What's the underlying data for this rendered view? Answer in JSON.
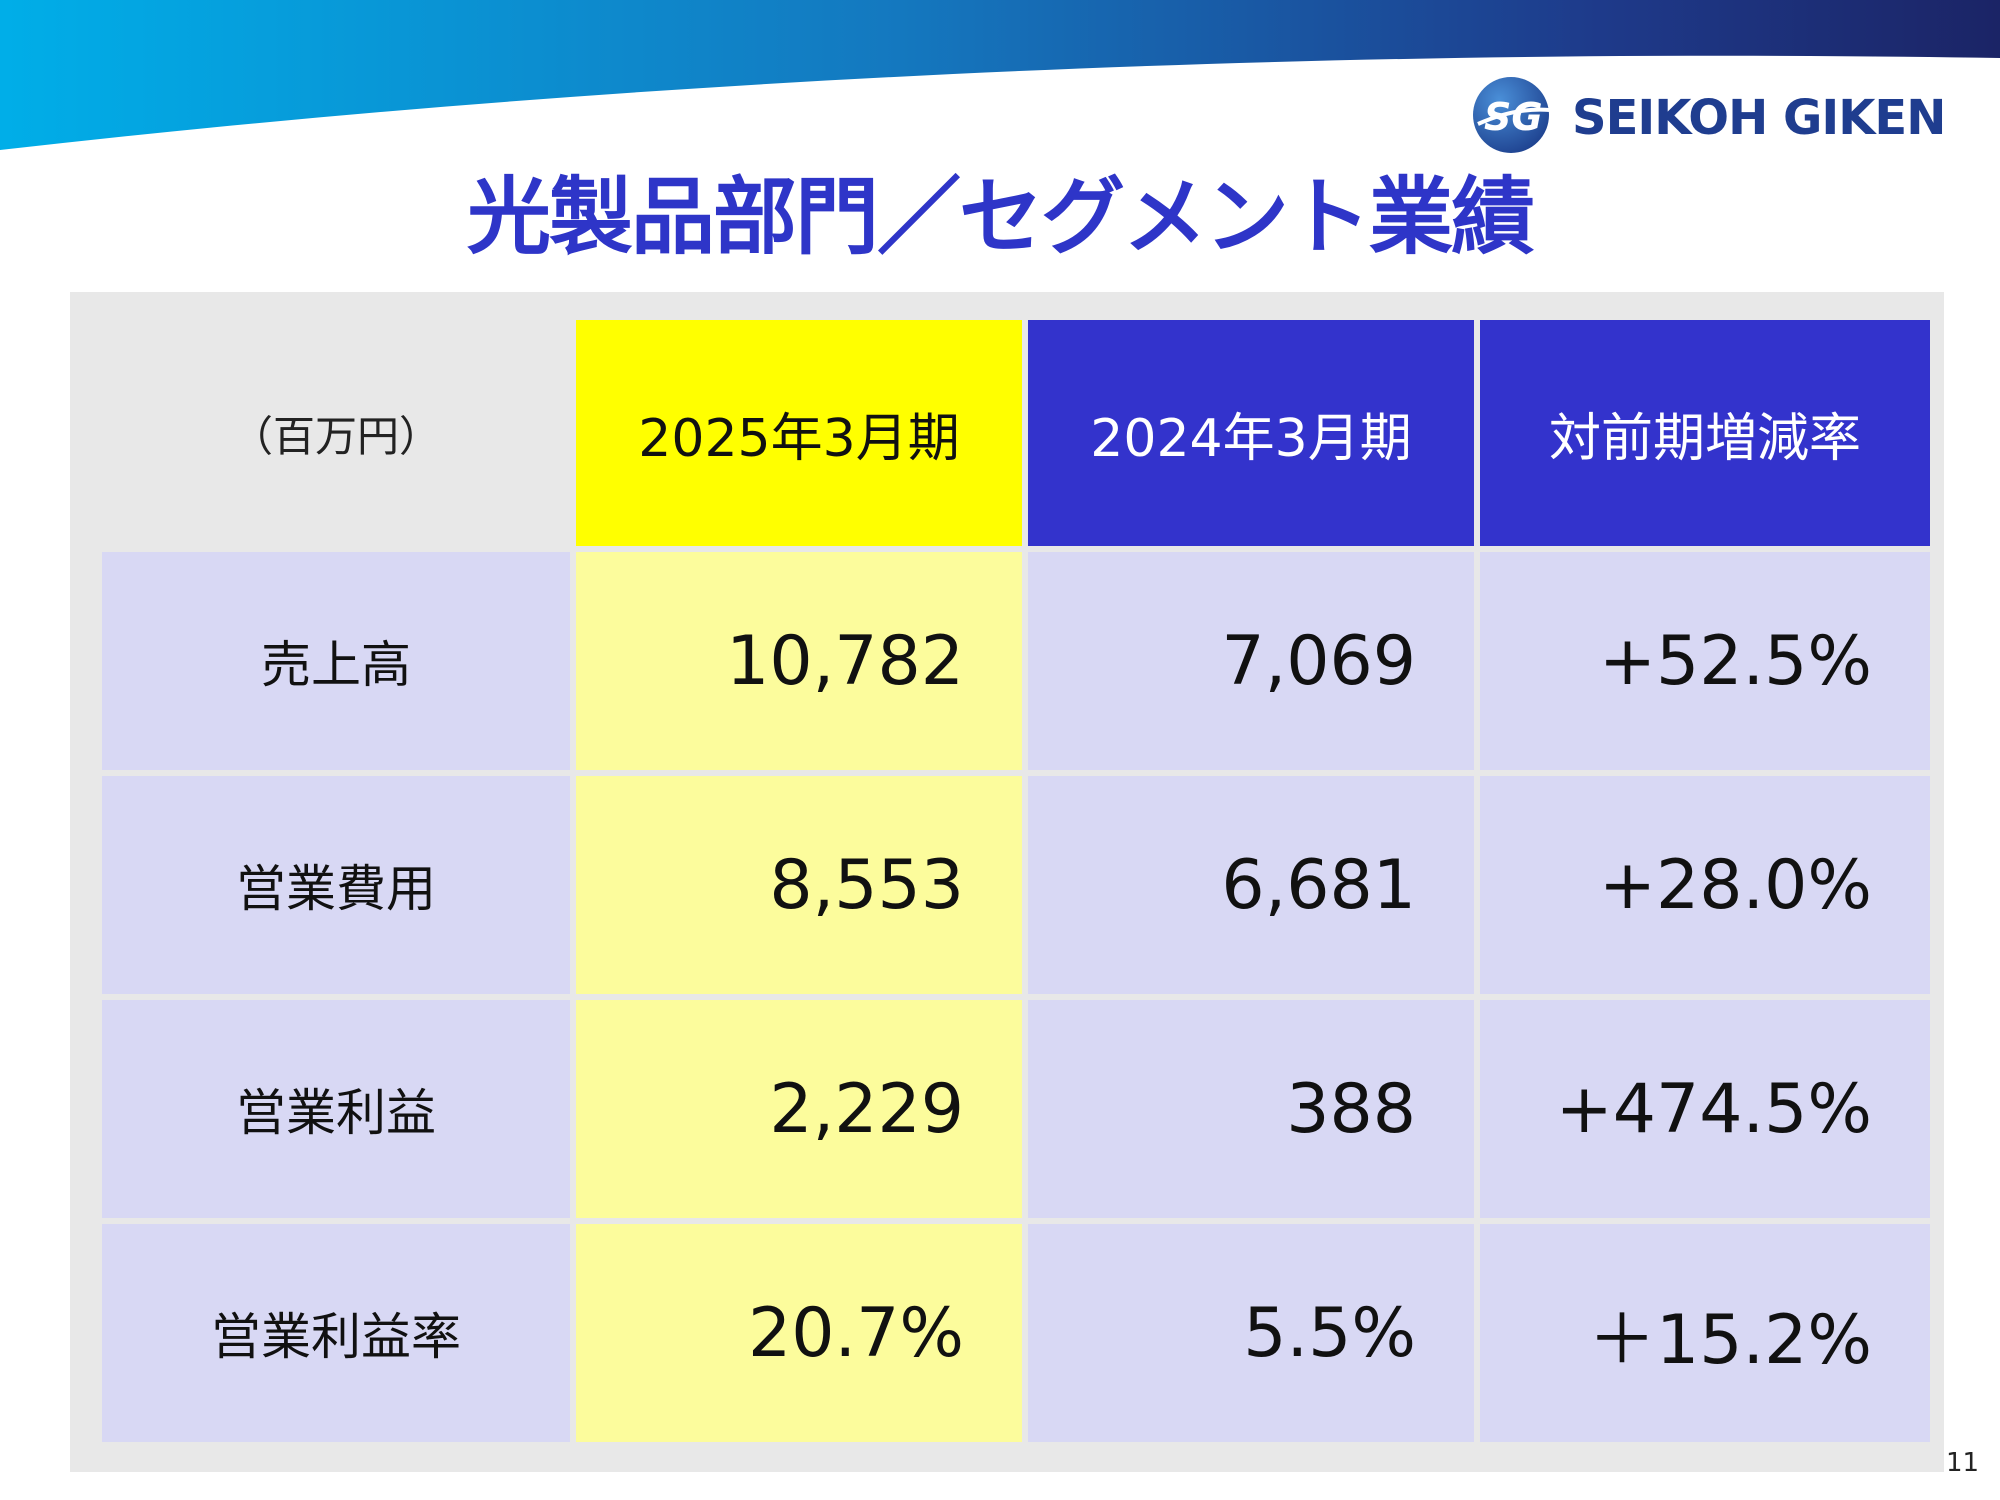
{
  "brand": {
    "name": "SEIKOH GIKEN",
    "mark_text": "SG"
  },
  "title": "光製品部門／セグメント業績",
  "table": {
    "unit_label": "（百万円）",
    "headers": [
      "2025年3月期",
      "2024年3月期",
      "対前期増減率"
    ],
    "rows": [
      {
        "label": "売上高",
        "values": [
          "10,782",
          "7,069",
          "+52.5%"
        ]
      },
      {
        "label": "営業費用",
        "values": [
          "8,553",
          "6,681",
          "+28.0%"
        ]
      },
      {
        "label": "営業利益",
        "values": [
          "2,229",
          "388",
          "+474.5%"
        ]
      },
      {
        "label": "営業利益率",
        "values": [
          "20.7%",
          "5.5%",
          "＋15.2%"
        ]
      }
    ]
  },
  "page_number": "11",
  "colors": {
    "title": "#2e35c8",
    "highlight_header": "#ffff00",
    "highlight_column": "#fcfc9c",
    "header_blue": "#3333cc",
    "row_lavender": "#d8d8f4",
    "panel_gray": "#e8e8e8"
  }
}
